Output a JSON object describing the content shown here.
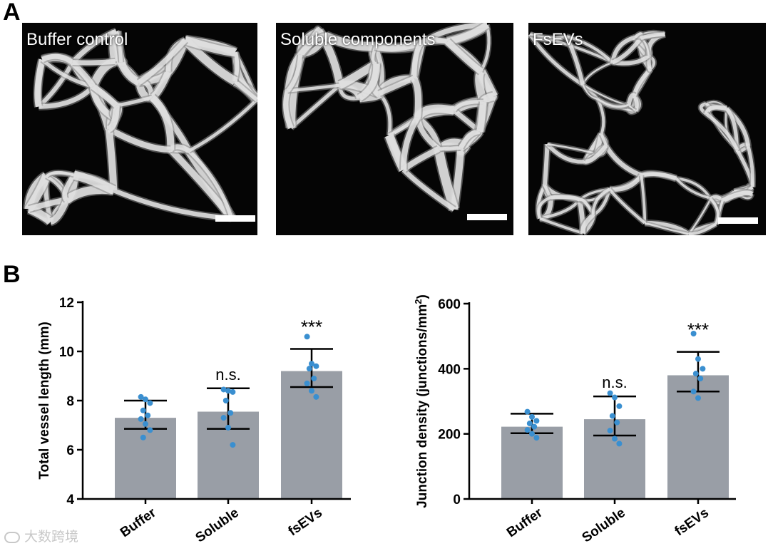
{
  "panel_a": {
    "letter": "A",
    "images": [
      {
        "label": "Buffer control"
      },
      {
        "label": "Soluble components"
      },
      {
        "label": "FsEVs"
      }
    ]
  },
  "panel_b": {
    "letter": "B"
  },
  "colors": {
    "bar": "#999ea6",
    "dot": "#3a8fd0",
    "axis": "#000000"
  },
  "watermark": "大数跨境",
  "chart_data": [
    {
      "type": "bar",
      "categories": [
        "Buffer",
        "Soluble",
        "fsEVs"
      ],
      "values": [
        7.3,
        7.55,
        9.2
      ],
      "error_low": [
        6.85,
        6.85,
        8.55
      ],
      "error_high": [
        8.0,
        8.5,
        10.1
      ],
      "points": [
        [
          8.15,
          8.05,
          7.9,
          7.6,
          7.4,
          7.25,
          7.05,
          6.8,
          6.5
        ],
        [
          8.45,
          8.4,
          8.35,
          8.0,
          7.5,
          7.3,
          6.9,
          6.2
        ],
        [
          10.6,
          9.5,
          9.4,
          9.3,
          8.9,
          8.7,
          8.4,
          8.15
        ]
      ],
      "significance": [
        "",
        "n.s.",
        "***"
      ],
      "xlabel": "",
      "ylabel": "Total vessel length (mm)",
      "ylim": [
        4,
        12
      ],
      "yticks": [
        4,
        6,
        8,
        10,
        12
      ]
    },
    {
      "type": "bar",
      "categories": [
        "Buffer",
        "Soluble",
        "fsEVs"
      ],
      "values": [
        222,
        245,
        380
      ],
      "error_low": [
        202,
        195,
        330
      ],
      "error_high": [
        262,
        315,
        452
      ],
      "points": [
        [
          268,
          252,
          240,
          232,
          222,
          212,
          200,
          188
        ],
        [
          325,
          312,
          285,
          255,
          235,
          210,
          185,
          170
        ],
        [
          508,
          430,
          400,
          385,
          370,
          330,
          310
        ]
      ],
      "significance": [
        "",
        "n.s.",
        "***"
      ],
      "xlabel": "",
      "ylabel": "Junction density (junctions/mm",
      "ylabel_sup": "2",
      "ylabel_end": ")",
      "ylim": [
        0,
        600
      ],
      "yticks": [
        0,
        200,
        400,
        600
      ]
    }
  ]
}
